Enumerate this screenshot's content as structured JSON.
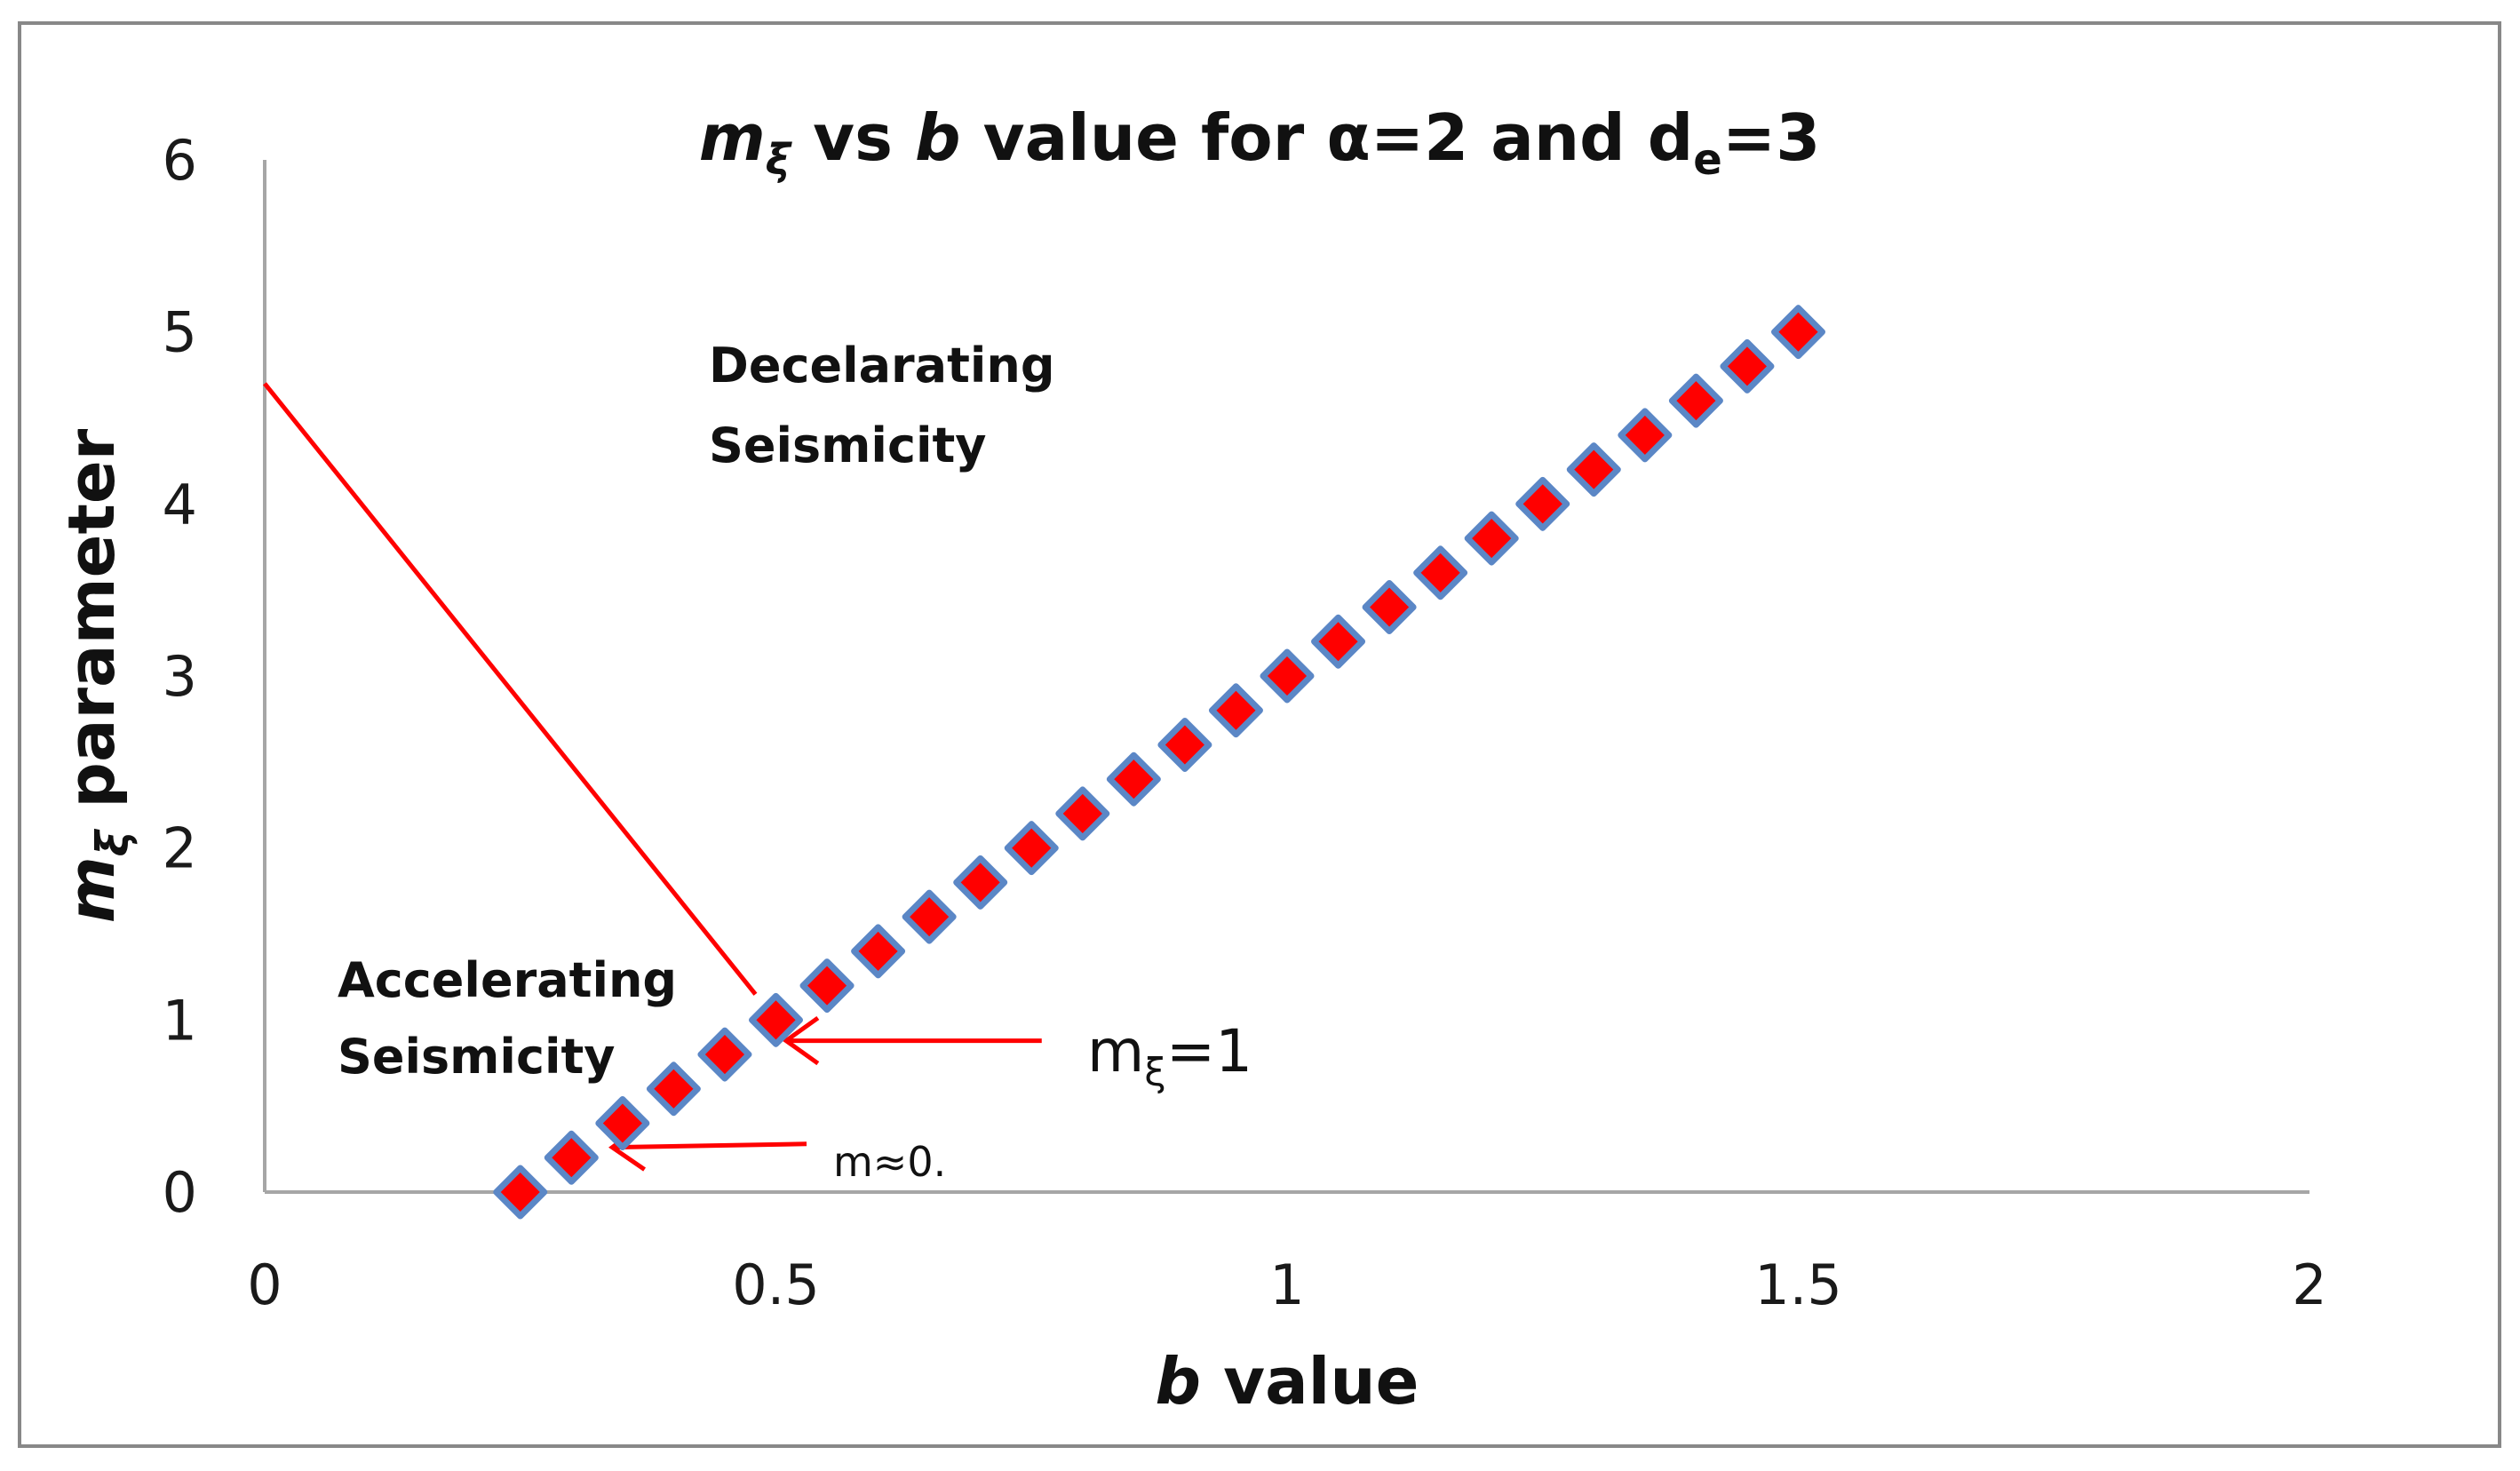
{
  "chart_data": {
    "type": "scatter",
    "title": {
      "m": "m",
      "m_sub": "ξ",
      "vs": " vs ",
      "b": "b",
      "rest": " value for α=2 and d",
      "d_sub": "e",
      "end": "=3"
    },
    "xlabel": {
      "b": "b",
      "rest": " value"
    },
    "ylabel": {
      "m": "m",
      "m_sub": "ξ",
      "rest": " parameter"
    },
    "xlim": [
      0,
      2
    ],
    "ylim": [
      0,
      6
    ],
    "x_ticks": [
      0,
      0.5,
      1,
      1.5,
      2
    ],
    "x_tick_labels": [
      "0",
      "0.5",
      "1",
      "1.5",
      "2"
    ],
    "y_ticks": [
      0,
      1,
      2,
      3,
      4,
      5,
      6
    ],
    "y_tick_labels": [
      "0",
      "1",
      "2",
      "3",
      "4",
      "5",
      "6"
    ],
    "grid": false,
    "series": [
      {
        "name": "m_xi",
        "marker": "diamond",
        "fill": "#ff0000",
        "edge": "#5b87c6",
        "x": [
          0.25,
          0.3,
          0.35,
          0.4,
          0.45,
          0.5,
          0.55,
          0.6,
          0.65,
          0.7,
          0.75,
          0.8,
          0.85,
          0.9,
          0.95,
          1.0,
          1.05,
          1.1,
          1.15,
          1.2,
          1.25,
          1.3,
          1.35,
          1.4,
          1.45,
          1.5
        ],
        "y": [
          0.0,
          0.2,
          0.4,
          0.6,
          0.8,
          1.0,
          1.2,
          1.4,
          1.6,
          1.8,
          2.0,
          2.2,
          2.4,
          2.6,
          2.8,
          3.0,
          3.2,
          3.4,
          3.6,
          3.8,
          4.0,
          4.2,
          4.4,
          4.6,
          4.8,
          5.0
        ]
      }
    ],
    "regions": {
      "upper_line1": "Decelarating",
      "upper_line2": "Seismicity",
      "lower_line1": "Accelerating",
      "lower_line2": "Seismicity"
    },
    "annotations": {
      "m_xi_1": {
        "m": "m",
        "m_sub": "ξ",
        "rest": "=1"
      },
      "m_approx_0": "m≈0."
    },
    "red_line": {
      "from": [
        0.0,
        4.7
      ],
      "to": [
        0.48,
        1.15
      ]
    },
    "arrows": [
      {
        "from": [
          0.76,
          0.88
        ],
        "to": [
          0.51,
          0.88
        ]
      },
      {
        "from": [
          0.53,
          0.28
        ],
        "to": [
          0.34,
          0.26
        ]
      }
    ]
  },
  "colors": {
    "frame": "#888888",
    "axis": "#a6a6a6",
    "accent_red": "#ff0000",
    "marker_edge": "#5b87c6"
  }
}
